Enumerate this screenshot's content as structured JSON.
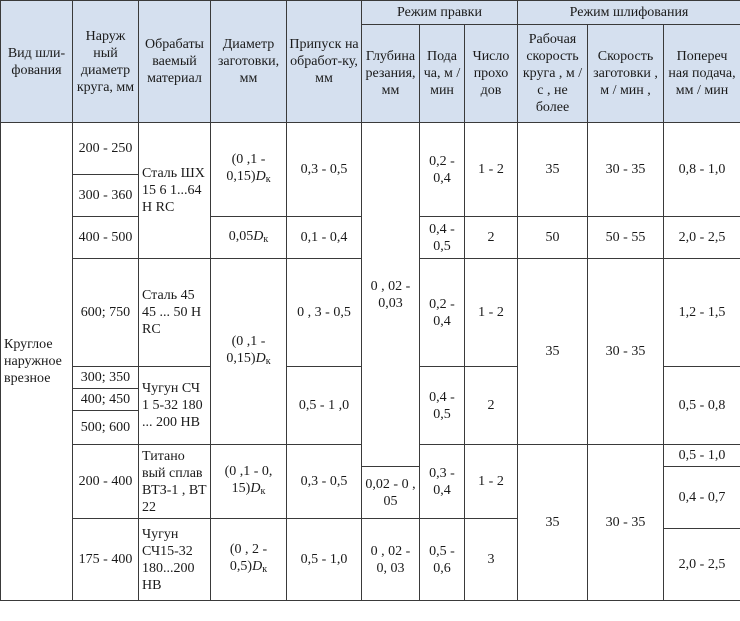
{
  "header": {
    "col_kind": "Вид шли-фования",
    "col_outer_diameter": "Наруж ный диаметр круга, мм",
    "col_material": "Обрабаты ваемый материал",
    "col_blank_diameter": "Диаметр заготовки, мм",
    "col_allowance": "Припуск на обработ-ку, мм",
    "group_dressing": "Режим правки",
    "group_grinding": "Режим шлифования",
    "col_dress_depth": "Глубина резания, мм",
    "col_dress_feed": "Пода ча, м / мин",
    "col_dress_passes": "Число прохо дов",
    "col_wheel_speed": "Рабочая скорость круга , м / с , не более",
    "col_work_speed": "Скорость заготовки , м / мин ,",
    "col_cross_feed": "Попереч ная подача, мм / мин"
  },
  "rows": {
    "kind": "Круглое наружное врезное",
    "d1": "200 - 250",
    "d2": "300 - 360",
    "d3": "400 - 500",
    "d4": "600; 750",
    "d5": "300; 350",
    "d6": "400; 450",
    "d7": "500; 600",
    "d8": "200 - 400",
    "d9": "175 - 400",
    "m1": "Сталь ШХ 15 6 1...64 H RC",
    "m2": "Сталь 45 45 ... 50 H RC",
    "m3": "Чугун СЧ 1 5-32 180 ... 200 HB",
    "m4": "Титано вый сплав ВТЗ-1 , ВТ 22",
    "m5": "Чугун СЧ15-32 180...200 HB",
    "b1": "(0 ,1 - 0,15)",
    "b2": "0,05",
    "b3": "(0 ,1 - 0,15)",
    "b4": "(0 ,1 - 0, 15)",
    "b5": "(0 , 2 - 0,5)",
    "dk_sym": "D",
    "dk_sub": "к",
    "a1": "0,3 - 0,5",
    "a2": "0,1 - 0,4",
    "a3": "0 , 3 - 0,5",
    "a4": "0,5 - 1 ,0",
    "a5": "0,3 - 0,5",
    "a6": "0,5 - 1,0",
    "dd1": "0 , 02 - 0,03",
    "dd2": "0,02 - 0 , 05",
    "dd3": "0 , 02 - 0, 03",
    "f1": "0,2 - 0,4",
    "f2": "0,4 - 0,5",
    "f3": "0,2 - 0,4",
    "f4": "0,4 - 0,5",
    "f5": "0,3 - 0,4",
    "f6": "0,5 - 0,6",
    "p1": "1 - 2",
    "p2": "2",
    "p3": "1 - 2",
    "p4": "2",
    "p5": "1 - 2",
    "p6": "3",
    "ws1": "35",
    "ws2": "50",
    "ws3": "35",
    "ws4": "35",
    "wk1": "30 - 35",
    "wk2": "50 - 55",
    "wk3": "30 - 35",
    "wk4": "30 - 35",
    "c1": "0,8 - 1,0",
    "c2": "2,0 - 2,5",
    "c3": "1,2 - 1,5",
    "c4": "0,5 - 0,8",
    "c5": "0,5 - 1,0",
    "c6": "0,4 - 0,7",
    "c7": "2,0 - 2,5"
  }
}
